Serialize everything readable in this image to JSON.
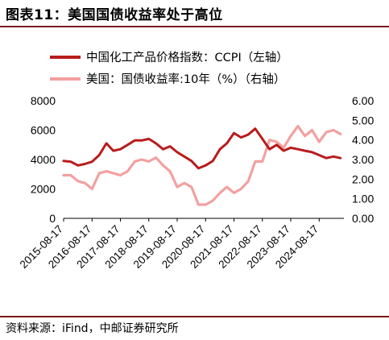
{
  "title": "图表11：美国国债收益率处于高位",
  "source": "资料来源：iFind，中邮证券研究所",
  "chart_data": {
    "type": "line",
    "title": "",
    "legend_position": "top",
    "grid": false,
    "x_dates": [
      "2015-08-17",
      "2015-11-17",
      "2016-02-17",
      "2016-05-17",
      "2016-08-17",
      "2016-11-17",
      "2017-02-17",
      "2017-05-17",
      "2017-08-17",
      "2017-11-17",
      "2018-02-17",
      "2018-05-17",
      "2018-08-17",
      "2018-11-17",
      "2019-02-17",
      "2019-05-17",
      "2019-08-17",
      "2019-11-17",
      "2020-02-17",
      "2020-05-17",
      "2020-08-17",
      "2020-11-17",
      "2021-02-17",
      "2021-05-17",
      "2021-08-17",
      "2021-11-17",
      "2022-02-17",
      "2022-05-17",
      "2022-08-17",
      "2022-11-17",
      "2023-02-17",
      "2023-05-17",
      "2023-08-17",
      "2023-11-17",
      "2024-02-17",
      "2024-05-17",
      "2024-08-17",
      "2024-11-17",
      "2025-02-17",
      "2025-05-17"
    ],
    "x_tick_labels": [
      "2015-08-17",
      "2016-08-17",
      "2017-08-17",
      "2018-08-17",
      "2019-08-17",
      "2020-08-17",
      "2021-08-17",
      "2022-08-17",
      "2023-08-17",
      "2024-08-17"
    ],
    "left_axis": {
      "ylim": [
        0,
        8000
      ],
      "ticks": [
        "0",
        "2000",
        "4000",
        "6000",
        "8000"
      ]
    },
    "right_axis": {
      "ylim": [
        0,
        6
      ],
      "ticks": [
        "0.00",
        "1.00",
        "2.00",
        "3.00",
        "4.00",
        "5.00",
        "6.00"
      ]
    },
    "series": [
      {
        "name": "中国化工产品价格指数：CCPI（左轴）",
        "axis": "left",
        "color": "#b81c1c",
        "values": [
          3900,
          3850,
          3600,
          3700,
          3850,
          4300,
          5100,
          4600,
          4700,
          5000,
          5300,
          5300,
          5400,
          5100,
          4700,
          4900,
          4500,
          4200,
          3900,
          3400,
          3600,
          3900,
          4700,
          5100,
          5800,
          5500,
          5700,
          6100,
          5400,
          4700,
          5000,
          4600,
          4800,
          4700,
          4600,
          4500,
          4300,
          4100,
          4200,
          4100
        ]
      },
      {
        "name": "美国：国债收益率:10年（%）（右轴）",
        "axis": "right",
        "color": "#f4a0a0",
        "values": [
          2.2,
          2.2,
          1.9,
          1.8,
          1.5,
          2.3,
          2.4,
          2.3,
          2.2,
          2.4,
          2.9,
          3.0,
          2.9,
          3.1,
          2.7,
          2.4,
          1.6,
          1.8,
          1.6,
          0.7,
          0.7,
          0.9,
          1.3,
          1.6,
          1.3,
          1.5,
          1.9,
          2.9,
          2.9,
          4.0,
          3.9,
          3.6,
          4.2,
          4.7,
          4.2,
          4.5,
          3.9,
          4.4,
          4.5,
          4.3
        ]
      }
    ]
  }
}
